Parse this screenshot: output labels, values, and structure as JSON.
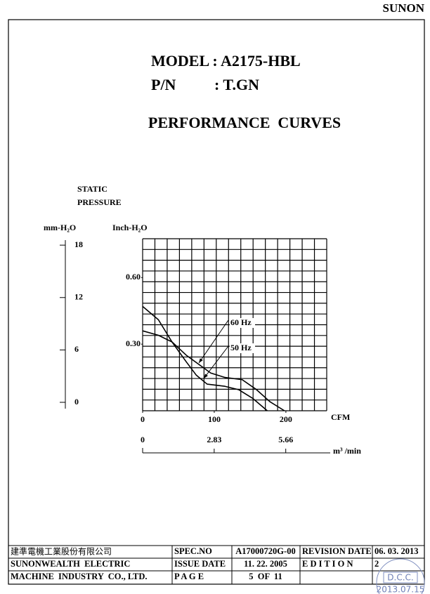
{
  "header": {
    "brand": "SUNON",
    "model": "MODEL : A2175-HBL",
    "pn_label": "P/N",
    "pn": ": T.GN",
    "title": "PERFORMANCE  CURVES"
  },
  "chart_data": {
    "type": "line",
    "y_label": [
      "STATIC",
      "PRESSURE"
    ],
    "y_unit": "Inch-H₂O",
    "y2_unit": "mm-H₂O",
    "x_label": "CFM",
    "x2_label": "m³ /min",
    "xlim": [
      0,
      257
    ],
    "xticks": [
      0,
      100,
      200
    ],
    "ylim": [
      0,
      0.775
    ],
    "yticks": [
      {
        "value": 0.3,
        "label": "0.30"
      },
      {
        "value": 0.6,
        "label": "0.60"
      }
    ],
    "y2lim": [
      0,
      19.7
    ],
    "y2ticks": [
      0,
      6,
      12,
      18
    ],
    "x2lim": [
      0,
      7.28
    ],
    "x2ticks": [
      0,
      2.83,
      5.66
    ],
    "grid": true,
    "series": [
      {
        "name": "60 Hz",
        "color": "#000000",
        "x": [
          0,
          22,
          41,
          61,
          78,
          95,
          115,
          139,
          159,
          178,
          198
        ],
        "values": [
          0.47,
          0.41,
          0.31,
          0.25,
          0.21,
          0.17,
          0.15,
          0.14,
          0.095,
          0.04,
          0
        ]
      },
      {
        "name": "50 Hz",
        "color": "#000000",
        "x": [
          0,
          22,
          41,
          61,
          75,
          90,
          115,
          134,
          154,
          174
        ],
        "values": [
          0.36,
          0.34,
          0.31,
          0.22,
          0.16,
          0.12,
          0.11,
          0.095,
          0.055,
          0
        ]
      }
    ]
  },
  "footer": {
    "company": [
      "建準電機工業股份有限公司",
      "SUNONWEALTH  ELECTRIC",
      "MACHINE  INDUSTRY  CO., LTD."
    ],
    "rows": [
      [
        "SPEC.NO",
        "A17000720G-00",
        "REVISION DATE",
        "06. 03. 2013"
      ],
      [
        "ISSUE DATE",
        "11. 22. 2005",
        "E D I T I O N",
        "2"
      ],
      [
        "P A G E",
        "5  OF  11"
      ]
    ]
  },
  "stamp": {
    "label": "D.C.C.",
    "date": "2013.07.15"
  }
}
